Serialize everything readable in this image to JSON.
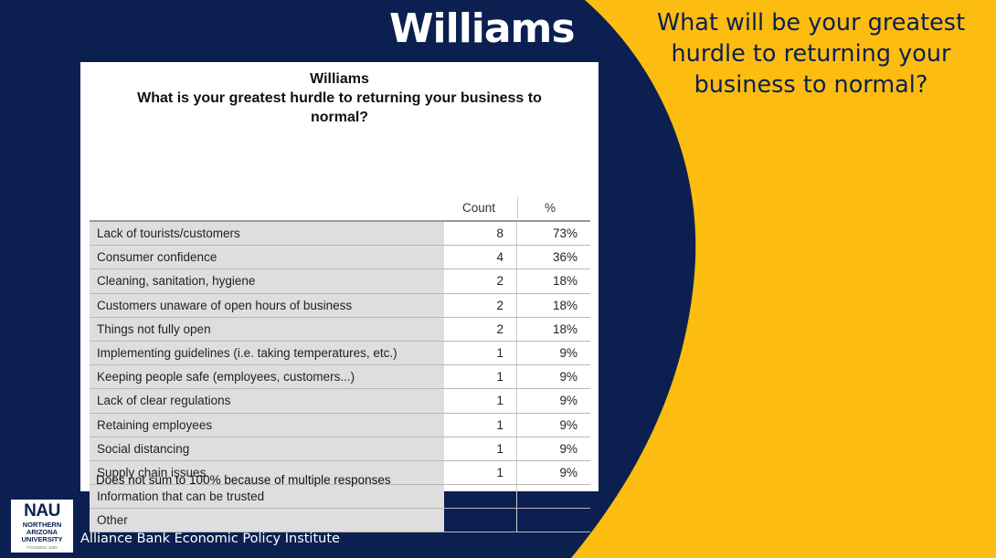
{
  "colors": {
    "navy": "#0b2050",
    "gold": "#fdbc10",
    "row_label_bg": "#dedede"
  },
  "slide": {
    "title": "Williams",
    "question": "What will be your greatest hurdle to returning your business to normal?"
  },
  "table": {
    "title_line1": "Williams",
    "title_line2": "What is your greatest hurdle to returning your business to",
    "title_line3": "normal?",
    "columns": {
      "count": "Count",
      "percent": "%"
    },
    "rows": [
      {
        "label": "Lack of tourists/customers",
        "count": "8",
        "percent": "73%"
      },
      {
        "label": "Consumer confidence",
        "count": "4",
        "percent": "36%"
      },
      {
        "label": "Cleaning, sanitation, hygiene",
        "count": "2",
        "percent": "18%"
      },
      {
        "label": "Customers unaware of open hours of business",
        "count": "2",
        "percent": "18%"
      },
      {
        "label": "Things not fully open",
        "count": "2",
        "percent": "18%"
      },
      {
        "label": "Implementing guidelines (i.e. taking temperatures, etc.)",
        "count": "1",
        "percent": "9%"
      },
      {
        "label": "Keeping people safe (employees, customers...)",
        "count": "1",
        "percent": "9%"
      },
      {
        "label": "Lack of clear regulations",
        "count": "1",
        "percent": "9%"
      },
      {
        "label": "Retaining employees",
        "count": "1",
        "percent": "9%"
      },
      {
        "label": "Social distancing",
        "count": "1",
        "percent": "9%"
      },
      {
        "label": "Supply chain issues",
        "count": "1",
        "percent": "9%"
      },
      {
        "label": "Information that can be trusted",
        "count": "",
        "percent": ""
      },
      {
        "label": "Other",
        "count": "",
        "percent": ""
      }
    ],
    "footnote": "Does not sum to 100% because of multiple responses"
  },
  "footer": {
    "logo_main": "NAU",
    "logo_line1": "NORTHERN",
    "logo_line2": "ARIZONA",
    "logo_line3": "UNIVERSITY",
    "logo_est": "FOUNDED 1899",
    "institute": "Alliance Bank Economic Policy Institute"
  }
}
